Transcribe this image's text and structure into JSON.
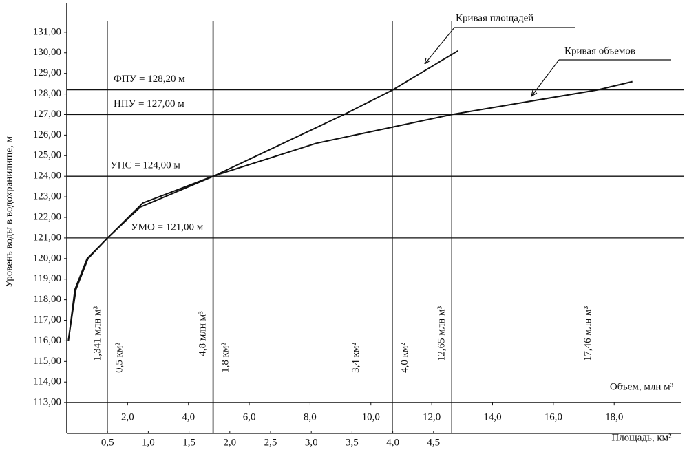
{
  "chart_data": {
    "type": "line",
    "y_label": "Уровень воды в водохранилище, м",
    "x_label": "Площадь, км²",
    "x2_label": "Объем, млн м³",
    "ylim": [
      111.5,
      132.4
    ],
    "yticks": [
      {
        "value": 113,
        "label": "113,00"
      },
      {
        "value": 114,
        "label": "114,00"
      },
      {
        "value": 115,
        "label": "115,00"
      },
      {
        "value": 116,
        "label": "116,00"
      },
      {
        "value": 117,
        "label": "117,00"
      },
      {
        "value": 118,
        "label": "118,00"
      },
      {
        "value": 119,
        "label": "119,00"
      },
      {
        "value": 120,
        "label": "120,00"
      },
      {
        "value": 121,
        "label": "121,00"
      },
      {
        "value": 122,
        "label": "122,00"
      },
      {
        "value": 123,
        "label": "123,00"
      },
      {
        "value": 124,
        "label": "124,00"
      },
      {
        "value": 125,
        "label": "125,00"
      },
      {
        "value": 126,
        "label": "126,00"
      },
      {
        "value": 127,
        "label": "127,00"
      },
      {
        "value": 128,
        "label": "128,00"
      },
      {
        "value": 129,
        "label": "129,00"
      },
      {
        "value": 130,
        "label": "130,00"
      },
      {
        "value": 131,
        "label": "131,00"
      }
    ],
    "xlim": [
      0,
      7.5
    ],
    "xticks": [
      {
        "value": 0.5,
        "label": "0,5"
      },
      {
        "value": 1.0,
        "label": "1,0"
      },
      {
        "value": 1.5,
        "label": "1,5"
      },
      {
        "value": 2.0,
        "label": "2,0"
      },
      {
        "value": 2.5,
        "label": "2,5"
      },
      {
        "value": 3.0,
        "label": "3,0"
      },
      {
        "value": 3.5,
        "label": "3,5"
      },
      {
        "value": 4.0,
        "label": "4,0"
      },
      {
        "value": 4.5,
        "label": "4,5"
      }
    ],
    "x2lim": [
      0,
      20.1
    ],
    "x2ticks": [
      {
        "value": 2,
        "label": "2,0"
      },
      {
        "value": 4,
        "label": "4,0"
      },
      {
        "value": 6,
        "label": "6,0"
      },
      {
        "value": 8,
        "label": "8,0"
      },
      {
        "value": 10,
        "label": "10,0"
      },
      {
        "value": 12,
        "label": "12,0"
      },
      {
        "value": 14,
        "label": "14,0"
      },
      {
        "value": 16,
        "label": "16,0"
      },
      {
        "value": 18,
        "label": "18,0"
      }
    ],
    "series": [
      {
        "name": "Кривая площадей",
        "axis": "x",
        "color": "#111111",
        "x": [
          0.02,
          0.1,
          0.25,
          0.5,
          0.9,
          1.8,
          3.4,
          4.0,
          4.8
        ],
        "values": [
          116,
          118.5,
          120,
          121,
          122.5,
          124,
          127,
          128.2,
          130.1
        ]
      },
      {
        "name": "Кривая объемов",
        "axis": "x2",
        "color": "#111111",
        "x": [
          0.05,
          0.3,
          0.7,
          1.341,
          2.5,
          4.8,
          8.2,
          12.65,
          17.46,
          18.6
        ],
        "values": [
          116,
          118.5,
          120,
          121,
          122.7,
          124,
          125.6,
          127,
          128.2,
          128.6
        ]
      }
    ],
    "ref_lines": [
      {
        "value": 128.2,
        "label": "ФПУ = 128,20 м"
      },
      {
        "value": 127,
        "label": "НПУ = 127,00 м"
      },
      {
        "value": 124,
        "label": "УПС = 124,00 м"
      },
      {
        "value": 121,
        "label": "УМО = 121,00 м"
      }
    ],
    "x_markers": [
      {
        "value": 0.5,
        "label": "0,5 км²"
      },
      {
        "value": 1.8,
        "label": "1,8 км²"
      },
      {
        "value": 3.4,
        "label": "3,4 км²"
      },
      {
        "value": 4.0,
        "label": "4,0 км²"
      }
    ],
    "x2_markers": [
      {
        "value": 1.341,
        "label": "1,341 млн м³"
      },
      {
        "value": 4.8,
        "label": "4,8 млн м³"
      },
      {
        "value": 12.65,
        "label": "12,65 млн м³"
      },
      {
        "value": 17.46,
        "label": "17,46 млн м³"
      }
    ]
  }
}
